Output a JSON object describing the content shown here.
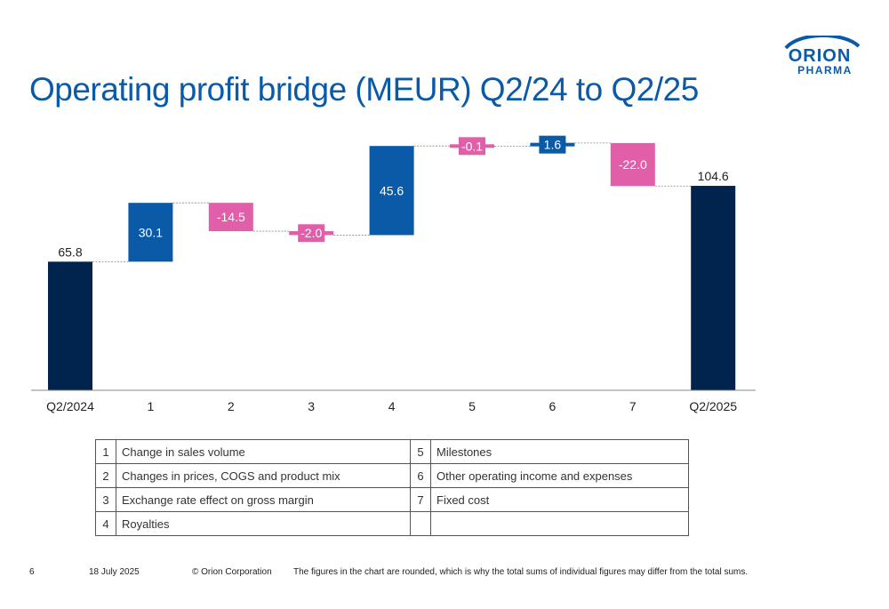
{
  "slide": {
    "title": "Operating profit bridge (MEUR) Q2/24 to Q2/25",
    "logo_text_top": "ORION",
    "logo_text_bottom": "PHARMA"
  },
  "colors": {
    "total": "#00244d",
    "increase": "#0a5aa8",
    "decrease": "#e05fa8",
    "title": "#0a5aa8"
  },
  "chart_data": {
    "type": "waterfall",
    "title": "",
    "xlabel": "",
    "ylabel": "",
    "categories": [
      "Q2/2024",
      "1",
      "2",
      "3",
      "4",
      "5",
      "6",
      "7",
      "Q2/2025"
    ],
    "values": [
      65.8,
      30.1,
      -14.5,
      -2.0,
      45.6,
      -0.1,
      1.6,
      -22.0,
      104.6
    ],
    "labels": [
      "65.8",
      "30.1",
      "-14.5",
      "-2.0",
      "45.6",
      "-0.1",
      "1.6",
      "-22.0",
      "104.6"
    ],
    "kinds": [
      "total",
      "delta",
      "delta",
      "delta",
      "delta",
      "delta",
      "delta",
      "delta",
      "total"
    ],
    "ylim": [
      0,
      131
    ],
    "grid": false,
    "legend": "none"
  },
  "legend_table": {
    "rows": [
      [
        {
          "num": "1",
          "text": "Change in sales volume"
        },
        {
          "num": "5",
          "text": "Milestones"
        }
      ],
      [
        {
          "num": "2",
          "text": "Changes in prices, COGS and product mix"
        },
        {
          "num": "6",
          "text": "Other operating income and expenses"
        }
      ],
      [
        {
          "num": "3",
          "text": "Exchange rate effect on gross margin"
        },
        {
          "num": "7",
          "text": "Fixed cost"
        }
      ],
      [
        {
          "num": "4",
          "text": "Royalties"
        },
        {
          "num": "",
          "text": ""
        }
      ]
    ]
  },
  "footer": {
    "page": "6",
    "date": "18 July 2025",
    "copyright": "© Orion Corporation",
    "note": "The figures in the chart are rounded, which is why the total sums of individual figures may differ from the total sums."
  }
}
